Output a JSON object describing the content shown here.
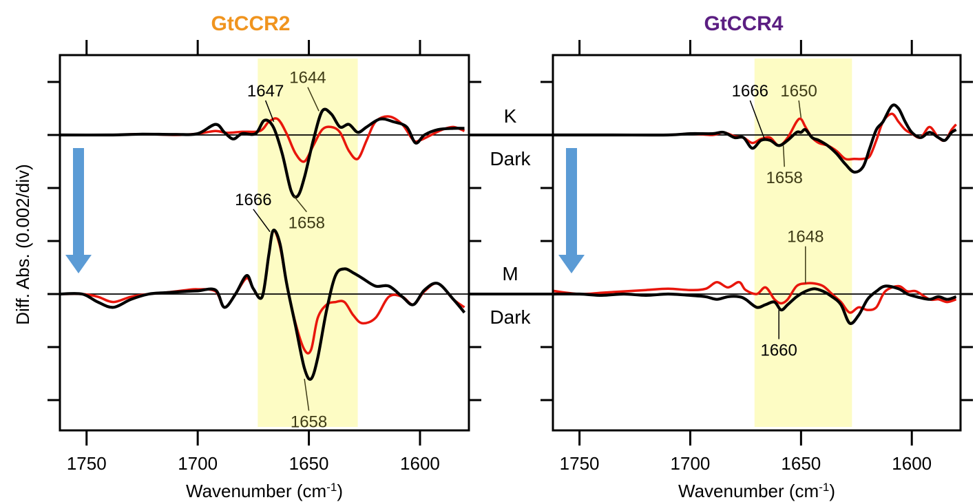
{
  "colors": {
    "highlight": "#fdfcc4",
    "arrow": "#5b9bd5",
    "series_red": "#e8160c",
    "series_black": "#000000",
    "annotation_text": "#3d3a15",
    "title_left": "#f0941e",
    "title_right": "#5b1e82"
  },
  "y_axis_label": "Diff. Abs. (0.002/div)",
  "state_labels": {
    "k": "K",
    "dark1": "Dark",
    "m": "M",
    "dark2": "Dark"
  },
  "arrow_icon": "down-arrow-icon",
  "chart_data": [
    {
      "type": "line",
      "title": "GtCCR2",
      "xlabel": "Wavenumber (cm",
      "xlabel_sup": "-1",
      "xlabel_end": ")",
      "xlim": [
        1762,
        1578
      ],
      "x_reversed": true,
      "x_ticks": [
        1750,
        1700,
        1650,
        1600
      ],
      "x_tick_labels": [
        "1750",
        "1700",
        "1650",
        "1600"
      ],
      "ylim": [
        -0.011,
        0.0028
      ],
      "y_tick_step": 0.002,
      "highlight_range": [
        1673,
        1628
      ],
      "baselines": [
        0,
        -0.006
      ],
      "panels": [
        {
          "name": "K - Dark",
          "offset": 0,
          "series": [
            {
              "color": "red",
              "x": [
                1762,
                1740,
                1725,
                1710,
                1700,
                1692,
                1687,
                1680,
                1672,
                1668,
                1664,
                1660,
                1656,
                1652,
                1648,
                1644,
                1640,
                1636,
                1632,
                1628,
                1624,
                1620,
                1614,
                1608,
                1603,
                1600,
                1595,
                1590,
                1585,
                1580
              ],
              "y": [
                0,
                0,
                3e-05,
                0,
                5e-05,
                0.00015,
                8e-05,
                0.00012,
                0.00015,
                0.0005,
                0.0006,
                5e-05,
                -0.0007,
                -0.001,
                -0.0004,
                0.0002,
                0.0003,
                0.0001,
                -0.0006,
                -0.0009,
                -0.0002,
                0.0005,
                0.0007,
                0.0004,
                -0.0002,
                -0.0002,
                0,
                0.0002,
                0.0003,
                0.00015
              ]
            },
            {
              "color": "black",
              "x": [
                1762,
                1740,
                1725,
                1710,
                1700,
                1692,
                1688,
                1684,
                1680,
                1674,
                1670,
                1666,
                1662,
                1658,
                1655,
                1652,
                1648,
                1644,
                1640,
                1636,
                1632,
                1628,
                1624,
                1618,
                1612,
                1606,
                1602,
                1598,
                1592,
                1585,
                1580
              ],
              "y": [
                0,
                0,
                3e-05,
                2e-05,
                5e-05,
                0.0004,
                0.0001,
                -0.00015,
                5e-05,
                5e-05,
                0.00055,
                0.0003,
                -0.0007,
                -0.0021,
                -0.0023,
                -0.0016,
                -0.0002,
                0.0009,
                0.0008,
                0.0003,
                0.0004,
                0.0001,
                0.0003,
                0.0006,
                0.0005,
                0.0003,
                -0.0003,
                0,
                0.0002,
                0.00025,
                0.00025
              ]
            }
          ],
          "annotations": [
            {
              "text": "1647",
              "color": "black",
              "x": 1665.8,
              "y": 0.0005,
              "lx": 1669.5,
              "ly": 0.0013
            },
            {
              "text": "1644",
              "color": "dark",
              "x": 1645.5,
              "y": 0.0009,
              "lx": 1650.5,
              "ly": 0.0018
            },
            {
              "text": "1658",
              "color": "dark",
              "x": 1656.8,
              "y": -0.0023,
              "lx": 1651,
              "ly": -0.0029
            }
          ]
        },
        {
          "name": "M - Dark",
          "offset": -0.006,
          "series": [
            {
              "color": "red",
              "x": [
                1762,
                1752,
                1745,
                1738,
                1730,
                1722,
                1715,
                1705,
                1700,
                1692,
                1688,
                1683,
                1678,
                1675,
                1671,
                1668,
                1666,
                1663,
                1660,
                1656,
                1652,
                1649,
                1646,
                1642,
                1638,
                1634,
                1630,
                1626,
                1620,
                1614,
                1608,
                1603,
                1598,
                1592,
                1585,
                1580
              ],
              "y": [
                0,
                0,
                -0.0001,
                -0.0003,
                -0.0001,
                0,
                5e-05,
                0.00015,
                0.00018,
                0.0001,
                -0.0005,
                0,
                0.0006,
                0.0002,
                -0.0001,
                0.0015,
                0.0024,
                0.0018,
                0.0004,
                -0.0011,
                -0.0021,
                -0.0021,
                -0.0009,
                -0.0004,
                -0.0003,
                -0.0003,
                -0.0008,
                -0.0011,
                -0.0009,
                -0.0001,
                -0.0001,
                -0.0004,
                0.0001,
                0.0004,
                -0.0002,
                -0.0005
              ]
            },
            {
              "color": "black",
              "x": [
                1762,
                1752,
                1745,
                1738,
                1730,
                1722,
                1715,
                1705,
                1700,
                1692,
                1688,
                1683,
                1678,
                1675,
                1671,
                1668,
                1666,
                1663,
                1660,
                1656,
                1652,
                1649,
                1646,
                1642,
                1638,
                1634,
                1630,
                1626,
                1620,
                1614,
                1608,
                1603,
                1598,
                1592,
                1585,
                1580
              ],
              "y": [
                0,
                0,
                -0.0003,
                -0.0005,
                -0.0002,
                0,
                5e-05,
                0.0001,
                0.00012,
                0.00015,
                -0.0005,
                0,
                0.0007,
                0.0002,
                -0.0001,
                0.0015,
                0.0024,
                0.0019,
                0.0004,
                -0.0012,
                -0.0028,
                -0.0032,
                -0.0024,
                -0.0006,
                0.0007,
                0.00095,
                0.0008,
                0.0006,
                0.0003,
                0.0003,
                -0.0001,
                -0.0004,
                0.00015,
                0.0004,
                -0.0002,
                -0.0007
              ]
            }
          ],
          "annotations": [
            {
              "text": "1666",
              "color": "black",
              "x": 1667.5,
              "y": 0.00235,
              "lx": 1675,
              "ly": 0.0032
            },
            {
              "text": "1658",
              "color": "dark",
              "x": 1652,
              "y": -0.0032,
              "lx": 1650,
              "ly": -0.0044
            }
          ]
        }
      ]
    },
    {
      "type": "line",
      "title": "GtCCR4",
      "xlabel": "Wavenumber (cm",
      "xlabel_sup": "-1",
      "xlabel_end": ")",
      "xlim": [
        1762,
        1578
      ],
      "x_reversed": true,
      "x_ticks": [
        1750,
        1700,
        1650,
        1600
      ],
      "x_tick_labels": [
        "1750",
        "1700",
        "1650",
        "1600"
      ],
      "ylim": [
        -0.011,
        0.0028
      ],
      "y_tick_step": 0.002,
      "highlight_range": [
        1671,
        1627
      ],
      "baselines": [
        0,
        -0.006
      ],
      "panels": [
        {
          "name": "K - Dark",
          "offset": 0,
          "series": [
            {
              "color": "red",
              "x": [
                1762,
                1735,
                1710,
                1700,
                1690,
                1685,
                1680,
                1676,
                1672,
                1668,
                1664,
                1660,
                1656,
                1652,
                1650,
                1648,
                1645,
                1642,
                1638,
                1634,
                1630,
                1626,
                1622,
                1619,
                1616,
                1613,
                1609,
                1606,
                1603,
                1600,
                1596,
                1592,
                1588,
                1585,
                1582,
                1580
              ],
              "y": [
                0,
                0,
                0,
                5e-05,
                0,
                0.0001,
                -5e-05,
                -0.0001,
                -0.0003,
                -0.00015,
                -0.0001,
                -0.0004,
                -0.0001,
                0.0005,
                0.0006,
                0.0003,
                -0.0001,
                -0.0003,
                -0.0004,
                -0.0006,
                -0.0009,
                -0.0009,
                -0.0009,
                -0.0008,
                -0.0002,
                0.0005,
                0.0008,
                0.0005,
                0.0002,
                5e-05,
                -0.0001,
                0.0003,
                -0.0001,
                -0.0002,
                0.0002,
                0.0004
              ]
            },
            {
              "color": "black",
              "x": [
                1762,
                1735,
                1710,
                1700,
                1690,
                1685,
                1680,
                1676,
                1672,
                1668,
                1664,
                1660,
                1656,
                1652,
                1650,
                1648,
                1645,
                1642,
                1638,
                1634,
                1630,
                1626,
                1622,
                1619,
                1616,
                1613,
                1609,
                1606,
                1603,
                1600,
                1596,
                1592,
                1588,
                1585,
                1582,
                1580
              ],
              "y": [
                0,
                0,
                0,
                5e-05,
                5e-05,
                0.0001,
                -0.0001,
                -0.0001,
                -0.0005,
                -0.0002,
                -0.0002,
                -0.0004,
                -0.0002,
                0.0001,
                0.0001,
                0.0002,
                -0.0001,
                -0.0002,
                -0.0004,
                -0.0007,
                -0.0011,
                -0.0014,
                -0.0012,
                -0.0005,
                0.0002,
                0.0005,
                0.0011,
                0.001,
                0.0005,
                0.0001,
                -0.0001,
                0.0001,
                -0.0001,
                -0.0002,
                0.0001,
                0.0002
              ]
            }
          ],
          "annotations": [
            {
              "text": "1666",
              "color": "black",
              "x": 1666.5,
              "y": -0.00015,
              "lx": 1673,
              "ly": 0.0013
            },
            {
              "text": "1650",
              "color": "dark",
              "x": 1650,
              "y": 0.00065,
              "lx": 1651,
              "ly": 0.0013
            },
            {
              "text": "1658",
              "color": "dark",
              "x": 1658,
              "y": -0.0004,
              "lx": 1657.5,
              "ly": -0.0012
            }
          ]
        },
        {
          "name": "M - Dark",
          "offset": -0.006,
          "series": [
            {
              "color": "red",
              "x": [
                1762,
                1750,
                1740,
                1730,
                1720,
                1710,
                1700,
                1693,
                1688,
                1683,
                1678,
                1675,
                1670,
                1666,
                1662,
                1659,
                1656,
                1652,
                1648,
                1644,
                1640,
                1636,
                1632,
                1628,
                1624,
                1620,
                1616,
                1612,
                1606,
                1602,
                1598,
                1592,
                1588,
                1584,
                1580
              ],
              "y": [
                0.00012,
                0,
                5e-05,
                0.0001,
                0.00015,
                0.0002,
                0.00015,
                0.0002,
                0.00045,
                0.00025,
                0.00045,
                0.00015,
                0,
                0.00025,
                -0.0002,
                -0.00035,
                -0.0002,
                0.0003,
                0.0004,
                0.0004,
                0.0003,
                0,
                -0.0003,
                -0.0007,
                -0.0005,
                -0.0006,
                -0.0005,
                0.0001,
                0.0003,
                0.0001,
                0.0001,
                -0.0002,
                -0.0002,
                -0.0003,
                -0.0002
              ]
            },
            {
              "color": "black",
              "x": [
                1762,
                1750,
                1740,
                1730,
                1720,
                1710,
                1700,
                1693,
                1688,
                1683,
                1678,
                1675,
                1670,
                1666,
                1662,
                1659,
                1656,
                1652,
                1648,
                1644,
                1640,
                1636,
                1632,
                1628,
                1624,
                1620,
                1616,
                1612,
                1606,
                1602,
                1598,
                1592,
                1588,
                1584,
                1580
              ],
              "y": [
                0,
                0,
                -5e-05,
                0,
                -5e-05,
                0,
                -5e-05,
                -0.0001,
                -0.0002,
                -0.0001,
                -0.0001,
                -0.0002,
                -0.0005,
                -0.0004,
                -0.0003,
                -0.0006,
                -0.0004,
                -0.0001,
                0.0001,
                0.0002,
                0.0001,
                -0.0001,
                -0.0004,
                -0.0011,
                -0.0008,
                -0.0002,
                0.0001,
                0.0003,
                0.0002,
                0,
                -0.0001,
                -0.0002,
                -0.0001,
                -0.0002,
                -0.0001
              ]
            }
          ],
          "annotations": [
            {
              "text": "1648",
              "color": "dark",
              "x": 1648,
              "y": 0.0004,
              "lx": 1648,
              "ly": 0.0018
            },
            {
              "text": "1660",
              "color": "black",
              "x": 1660,
              "y": -0.0006,
              "lx": 1660,
              "ly": -0.0017
            }
          ]
        }
      ]
    }
  ]
}
